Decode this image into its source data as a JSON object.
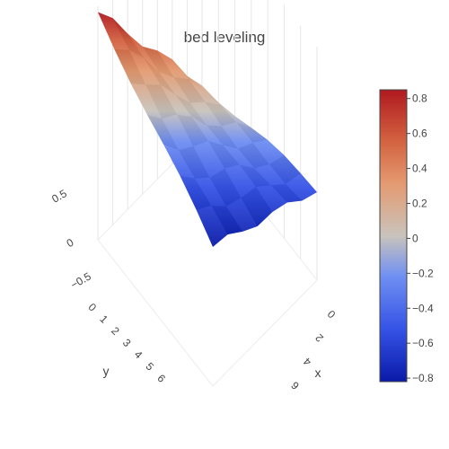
{
  "chart_data": {
    "type": "surface",
    "title": "bed leveling",
    "xlabel": "x",
    "ylabel": "y",
    "zlabel": "",
    "x_ticks": [
      "0",
      "2",
      "4",
      "6"
    ],
    "y_ticks": [
      "0",
      "1",
      "2",
      "3",
      "4",
      "5",
      "6"
    ],
    "z_ticks": [
      "0.5",
      "0",
      "−0.5"
    ],
    "x": [
      0,
      1,
      2,
      3,
      4,
      5,
      6,
      7
    ],
    "y": [
      0,
      1,
      2,
      3,
      4,
      5,
      6,
      7
    ],
    "z_corners": {
      "x0_y0": 0.0,
      "x7_y0": -0.45,
      "x0_y7": 0.82,
      "x7_y7": -0.82
    },
    "colorscale": [
      {
        "value": -0.82,
        "color": "#0a1aa8"
      },
      {
        "value": -0.55,
        "color": "#3553e6"
      },
      {
        "value": -0.3,
        "color": "#6f8ff2"
      },
      {
        "value": 0.0,
        "color": "#c9c3bc"
      },
      {
        "value": 0.3,
        "color": "#e49a70"
      },
      {
        "value": 0.55,
        "color": "#d2603f"
      },
      {
        "value": 0.82,
        "color": "#b01a20"
      }
    ],
    "colorbar": {
      "range": [
        -0.82,
        0.85
      ],
      "ticks": [
        "0.8",
        "0.6",
        "0.4",
        "0.2",
        "0",
        "−0.2",
        "−0.4",
        "−0.6",
        "−0.8"
      ],
      "tick_values": [
        0.8,
        0.6,
        0.4,
        0.2,
        0,
        -0.2,
        -0.4,
        -0.6,
        -0.8
      ]
    }
  }
}
